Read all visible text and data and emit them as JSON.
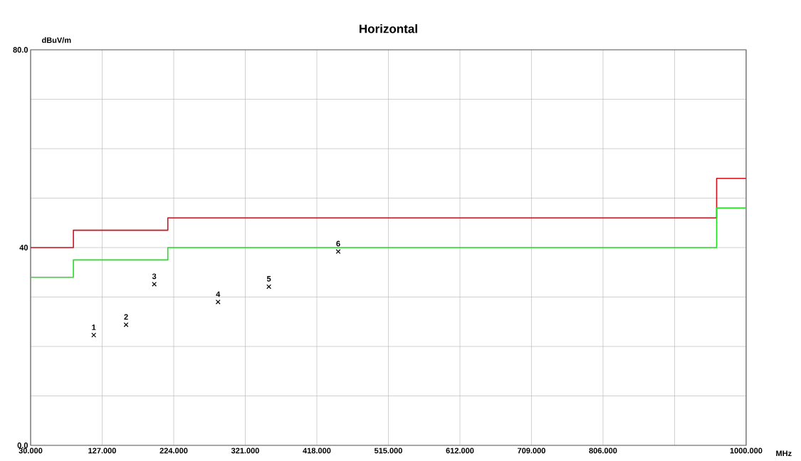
{
  "chart_data": {
    "type": "step",
    "title": "Horizontal",
    "xlabel": "MHz",
    "ylabel": "dBuV/m",
    "xlim": [
      30,
      1000
    ],
    "ylim": [
      0,
      80
    ],
    "xticks": [
      {
        "value": 30,
        "label": "30.000"
      },
      {
        "value": 127,
        "label": "127.000"
      },
      {
        "value": 224,
        "label": "224.000"
      },
      {
        "value": 321,
        "label": "321.000"
      },
      {
        "value": 418,
        "label": "418.000"
      },
      {
        "value": 515,
        "label": "515.000"
      },
      {
        "value": 612,
        "label": "612.000"
      },
      {
        "value": 709,
        "label": "709.000"
      },
      {
        "value": 806,
        "label": "806.000"
      },
      {
        "value": 903,
        "label": null
      },
      {
        "value": 1000,
        "label": "1000.000"
      }
    ],
    "yticks": [
      {
        "value": 0,
        "label": "0.0"
      },
      {
        "value": 10,
        "label": null
      },
      {
        "value": 20,
        "label": null
      },
      {
        "value": 30,
        "label": null
      },
      40,
      {
        "value": 50,
        "label": null
      },
      {
        "value": 60,
        "label": null
      },
      {
        "value": 70,
        "label": null
      },
      {
        "value": 80,
        "label": "80.0"
      }
    ],
    "grid": true,
    "series": [
      {
        "color": "#d0101a",
        "x": [
          30,
          88,
          216,
          960,
          1000
        ],
        "values": [
          40,
          43.5,
          46,
          54,
          54
        ]
      },
      {
        "color": "#20e020",
        "x": [
          30,
          88,
          216,
          960,
          1000
        ],
        "values": [
          34,
          37.5,
          40,
          48,
          48
        ]
      },
      {
        "type": "scatter",
        "color": "#000000",
        "marker": "cross",
        "x": [
          115.6,
          159.4,
          197.6,
          284.1,
          353.0,
          447.0
        ],
        "values": [
          22.3,
          24.4,
          32.6,
          29.0,
          32.1,
          39.2
        ]
      }
    ],
    "annotations": [
      {
        "text": "1",
        "x": 115.6,
        "y": 22.3
      },
      {
        "text": "2",
        "x": 159.4,
        "y": 24.4
      },
      {
        "text": "3",
        "x": 197.6,
        "y": 32.6
      },
      {
        "text": "4",
        "x": 284.1,
        "y": 29.0
      },
      {
        "text": "5",
        "x": 353.0,
        "y": 32.1
      },
      {
        "text": "6",
        "x": 447.0,
        "y": 39.2
      }
    ]
  }
}
